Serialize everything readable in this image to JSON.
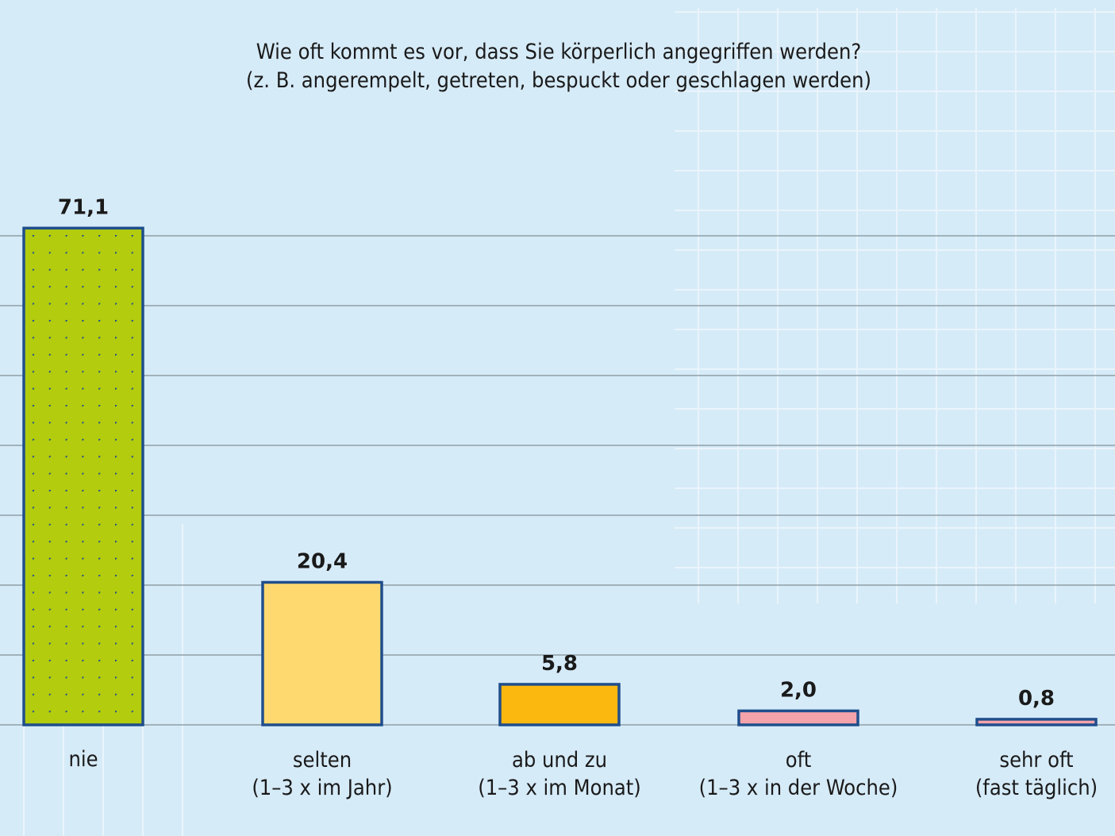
{
  "chart_data": {
    "type": "bar",
    "title": "Wie oft kommt es vor, dass Sie körperlich angegriffen werden?",
    "subtitle": "(z. B. angerempelt, getreten, bespuckt oder geschlagen werden)",
    "categories": [
      "nie",
      "selten\n(1–3 x im Jahr)",
      "ab und zu\n(1–3 x im Monat)",
      "oft\n(1–3 x in der Woche)",
      "sehr oft\n(fast täglich)"
    ],
    "values": [
      71.1,
      20.4,
      5.8,
      2.0,
      0.8
    ],
    "value_labels": [
      "71,1",
      "20,4",
      "5,8",
      "2,0",
      "0,8"
    ],
    "bar_colors": [
      "#b3cc0e",
      "#fdd96f",
      "#fbb80f",
      "#f4a3ab",
      "#f4a3ab"
    ],
    "bar_pattern": [
      "dots",
      "none",
      "none",
      "none",
      "none"
    ],
    "bar_border_color": "#1f4e8c",
    "gridline_color": "#7f8f96",
    "background_color": "#d6ebf8",
    "ylim": [
      0,
      70
    ],
    "grid": true,
    "xlabel": "",
    "ylabel": ""
  }
}
